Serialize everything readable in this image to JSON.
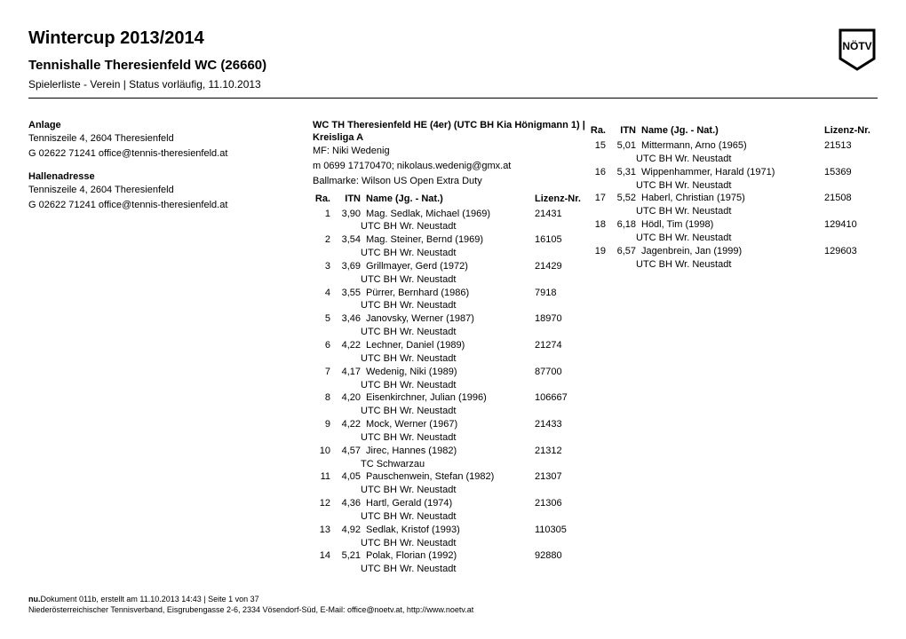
{
  "header": {
    "title": "Wintercup 2013/2014",
    "subtitle": "Tennishalle Theresienfeld WC (26660)",
    "meta": "Spielerliste - Verein | Status vorläufig, 11.10.2013"
  },
  "left": {
    "anlage_label": "Anlage",
    "anlage_address": "Tenniszeile 4, 2604 Theresienfeld",
    "anlage_contact": "G 02622 71241 office@tennis-theresienfeld.at",
    "halle_label": "Hallenadresse",
    "halle_address": "Tenniszeile 4, 2604 Theresienfeld",
    "halle_contact": "G 02622 71241 office@tennis-theresienfeld.at"
  },
  "mid": {
    "team_line": "WC TH Theresienfeld HE (4er) (UTC BH Kia Hönigmann 1) |",
    "league": "Kreisliga A",
    "mf": "MF: Niki Wedenig",
    "mf_contact": "m 0699 17170470; nikolaus.wedenig@gmx.at",
    "ballmarke": "Ballmarke: Wilson US Open Extra Duty"
  },
  "table_headers": {
    "ra": "Ra.",
    "itn": "ITN",
    "name": "Name (Jg. - Nat.)",
    "lic": "Lizenz-Nr."
  },
  "players_left": [
    {
      "ra": "1",
      "itn": "3,90",
      "name": "Mag. Sedlak, Michael (1969)",
      "club": "UTC BH Wr. Neustadt",
      "lic": "21431"
    },
    {
      "ra": "2",
      "itn": "3,54",
      "name": "Mag. Steiner, Bernd (1969)",
      "club": "UTC BH Wr. Neustadt",
      "lic": "16105"
    },
    {
      "ra": "3",
      "itn": "3,69",
      "name": "Grillmayer, Gerd (1972)",
      "club": "UTC BH Wr. Neustadt",
      "lic": "21429"
    },
    {
      "ra": "4",
      "itn": "3,55",
      "name": "Pürrer, Bernhard (1986)",
      "club": "UTC BH Wr. Neustadt",
      "lic": "7918"
    },
    {
      "ra": "5",
      "itn": "3,46",
      "name": "Janovsky, Werner (1987)",
      "club": "UTC BH Wr. Neustadt",
      "lic": "18970"
    },
    {
      "ra": "6",
      "itn": "4,22",
      "name": "Lechner, Daniel (1989)",
      "club": "UTC BH Wr. Neustadt",
      "lic": "21274"
    },
    {
      "ra": "7",
      "itn": "4,17",
      "name": "Wedenig, Niki (1989)",
      "club": "UTC BH Wr. Neustadt",
      "lic": "87700"
    },
    {
      "ra": "8",
      "itn": "4,20",
      "name": "Eisenkirchner, Julian (1996)",
      "club": "UTC BH Wr. Neustadt",
      "lic": "106667"
    },
    {
      "ra": "9",
      "itn": "4,22",
      "name": "Mock, Werner (1967)",
      "club": "UTC BH Wr. Neustadt",
      "lic": "21433"
    },
    {
      "ra": "10",
      "itn": "4,57",
      "name": "Jirec, Hannes (1982)",
      "club": "TC Schwarzau",
      "lic": "21312"
    },
    {
      "ra": "11",
      "itn": "4,05",
      "name": "Pauschenwein, Stefan (1982)",
      "club": "UTC BH Wr. Neustadt",
      "lic": "21307"
    },
    {
      "ra": "12",
      "itn": "4,36",
      "name": "Hartl, Gerald (1974)",
      "club": "UTC BH Wr. Neustadt",
      "lic": "21306"
    },
    {
      "ra": "13",
      "itn": "4,92",
      "name": "Sedlak, Kristof (1993)",
      "club": "UTC BH Wr. Neustadt",
      "lic": "110305"
    },
    {
      "ra": "14",
      "itn": "5,21",
      "name": "Polak, Florian (1992)",
      "club": "UTC BH Wr. Neustadt",
      "lic": "92880"
    }
  ],
  "players_right": [
    {
      "ra": "15",
      "itn": "5,01",
      "name": "Mittermann, Arno (1965)",
      "club": "UTC BH Wr. Neustadt",
      "lic": "21513"
    },
    {
      "ra": "16",
      "itn": "5,31",
      "name": "Wippenhammer, Harald (1971)",
      "club": "UTC BH Wr. Neustadt",
      "lic": "15369"
    },
    {
      "ra": "17",
      "itn": "5,52",
      "name": "Haberl, Christian (1975)",
      "club": "UTC BH Wr. Neustadt",
      "lic": "21508"
    },
    {
      "ra": "18",
      "itn": "6,18",
      "name": "Hödl, Tim (1998)",
      "club": "UTC BH Wr. Neustadt",
      "lic": "129410"
    },
    {
      "ra": "19",
      "itn": "6,57",
      "name": "Jagenbrein, Jan (1999)",
      "club": "UTC BH Wr. Neustadt",
      "lic": "129603"
    }
  ],
  "footer": {
    "line1_prefix": "nu.",
    "line1_rest": "Dokument 011b, erstellt am 11.10.2013 14:43 | Seite 1 von 37",
    "line2": "Niederösterreichischer Tennisverband,  Eisgrubengasse 2-6,  2334 Vösendorf-Süd,  E-Mail: office@noetv.at,  http://www.noetv.at"
  },
  "style": {
    "title_fontsize": 20,
    "subtitle_fontsize": 15,
    "meta_fontsize": 12,
    "body_fontsize": 11,
    "footer_fontsize": 9,
    "text_color": "#000000",
    "background_color": "#ffffff",
    "divider_color": "#000000"
  }
}
